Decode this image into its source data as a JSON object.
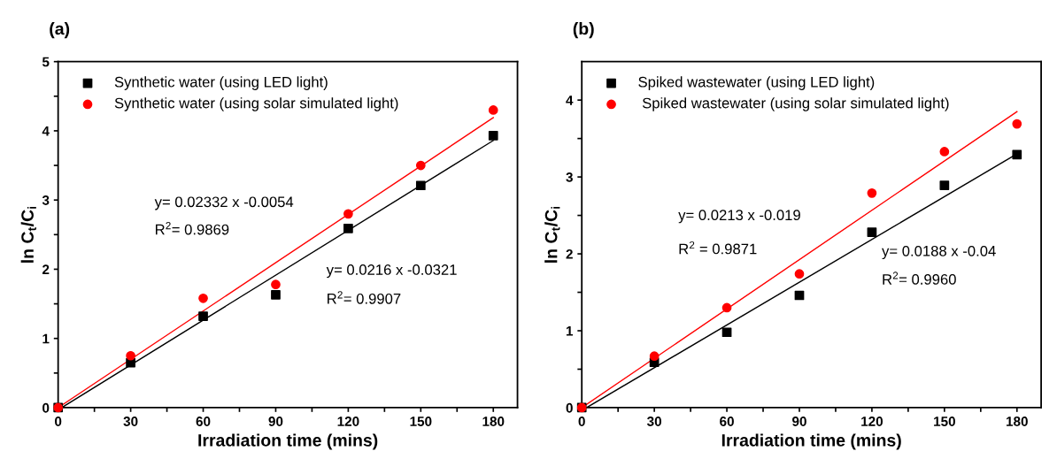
{
  "chart_data": [
    {
      "type": "scatter",
      "title": "(a)",
      "xlabel": "Irradiation time (mins)",
      "ylabel": "ln C$_{t}$/C$_{i}$",
      "x": [
        0,
        30,
        60,
        90,
        120,
        150,
        180
      ],
      "series": [
        {
          "name": "Synthetic water (using LED light)",
          "color": "#000000",
          "marker": "square",
          "values": [
            0,
            0.65,
            1.32,
            1.63,
            2.59,
            3.21,
            3.93
          ]
        },
        {
          "name": "Synthetic water (using solar simulated light)",
          "color": "#ff0000",
          "marker": "circle",
          "values": [
            0,
            0.75,
            1.58,
            1.78,
            2.8,
            3.5,
            4.3
          ]
        },
        {
          "type": "line",
          "color": "#000000",
          "x": [
            1.5,
            180
          ],
          "values": [
            0,
            3.86
          ]
        },
        {
          "type": "line",
          "color": "#ff0000",
          "x": [
            0,
            180
          ],
          "values": [
            0,
            4.19
          ]
        }
      ],
      "xlim": [
        0,
        190
      ],
      "ylim": [
        0,
        5
      ],
      "xticks": [
        0,
        {
          "value": 15,
          "label": null
        },
        30,
        {
          "value": 45,
          "label": null
        },
        60,
        {
          "value": 75,
          "label": null
        },
        90,
        {
          "value": 105,
          "label": null
        },
        120,
        {
          "value": 135,
          "label": null
        },
        150,
        {
          "value": 165,
          "label": null
        },
        180
      ],
      "yticks": [
        0,
        {
          "value": 0.5,
          "label": null
        },
        1,
        {
          "value": 1.5,
          "label": null
        },
        2,
        {
          "value": 2.5,
          "label": null
        },
        3,
        {
          "value": 3.5,
          "label": null
        },
        4,
        {
          "value": 4.5,
          "label": null
        },
        5
      ],
      "annotations": [
        "y= 0.02332 x -0.0054",
        "R$^{2}$= 0.9869",
        "y= 0.0216 x -0.0321",
        "R$^{2}$= 0.9907"
      ],
      "legend": "top left",
      "grid": false
    },
    {
      "type": "scatter",
      "title": "(b)",
      "xlabel": "Irradiation time (mins)",
      "ylabel": "ln C$_{t}$/C$_{i}$",
      "x": [
        0,
        30,
        60,
        90,
        120,
        150,
        180
      ],
      "series": [
        {
          "name": "Spiked wastewater (using LED light)",
          "color": "#000000",
          "marker": "square",
          "values": [
            0,
            0.59,
            0.98,
            1.46,
            2.28,
            2.89,
            3.29
          ]
        },
        {
          "name": " Spiked wastewater (using solar simulated light)",
          "color": "#ff0000",
          "marker": "circle",
          "values": [
            0,
            0.67,
            1.3,
            1.74,
            2.79,
            3.33,
            3.69
          ]
        },
        {
          "type": "line",
          "color": "#000000",
          "x": [
            2,
            180
          ],
          "values": [
            0,
            3.3
          ]
        },
        {
          "type": "line",
          "color": "#ff0000",
          "x": [
            0,
            180
          ],
          "values": [
            0,
            3.85
          ]
        }
      ],
      "xlim": [
        0,
        190
      ],
      "ylim": [
        0,
        4.5
      ],
      "xticks": [
        0,
        {
          "value": 15,
          "label": null
        },
        30,
        {
          "value": 45,
          "label": null
        },
        60,
        {
          "value": 75,
          "label": null
        },
        90,
        {
          "value": 105,
          "label": null
        },
        120,
        {
          "value": 135,
          "label": null
        },
        150,
        {
          "value": 165,
          "label": null
        },
        180
      ],
      "yticks": [
        0,
        {
          "value": 0.5,
          "label": null
        },
        1,
        {
          "value": 1.5,
          "label": null
        },
        2,
        {
          "value": 2.5,
          "label": null
        },
        3,
        {
          "value": 3.5,
          "label": null
        },
        4
      ],
      "annotations": [
        "y= 0.0213 x -0.019",
        "R$^{2}$ = 0.9871",
        "y= 0.0188 x -0.04",
        "R$^{2}$= 0.9960"
      ],
      "legend": "top left",
      "grid": false
    }
  ]
}
